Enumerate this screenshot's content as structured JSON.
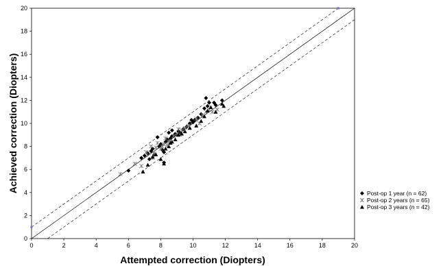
{
  "chart_data": {
    "type": "scatter",
    "xlabel": "Attempted correction (Diopters)",
    "ylabel": "Achieved correction (Diopters)",
    "xlim": [
      0,
      20
    ],
    "ylim": [
      0,
      20
    ],
    "xticks": [
      "0",
      "2",
      "4",
      "6",
      "8",
      "10",
      "12",
      "14",
      "16",
      "18",
      "20"
    ],
    "yticks": [
      "0",
      "2",
      "4",
      "6",
      "8",
      "10",
      "12",
      "14",
      "16",
      "18",
      "20"
    ],
    "grid": false,
    "legend_position": "right",
    "reference_lines": [
      {
        "type": "identity",
        "style": "solid",
        "points": [
          [
            0,
            0
          ],
          [
            20,
            20
          ]
        ]
      },
      {
        "type": "upper-bound",
        "style": "dashed",
        "points": [
          [
            0,
            1
          ],
          [
            19,
            20
          ]
        ]
      },
      {
        "type": "lower-bound",
        "style": "dashed",
        "points": [
          [
            1,
            0
          ],
          [
            20,
            19
          ]
        ]
      }
    ],
    "anchor_points": [
      [
        0,
        1
      ],
      [
        19,
        20
      ]
    ],
    "series": [
      {
        "name": "Post-op 1 year (n = 62)",
        "marker": "diamond",
        "points": [
          [
            6.0,
            5.9
          ],
          [
            6.8,
            7.0
          ],
          [
            7.0,
            7.2
          ],
          [
            7.2,
            7.4
          ],
          [
            7.3,
            6.9
          ],
          [
            7.5,
            7.8
          ],
          [
            7.6,
            7.3
          ],
          [
            7.8,
            8.8
          ],
          [
            7.9,
            8.0
          ],
          [
            8.0,
            8.2
          ],
          [
            8.1,
            7.7
          ],
          [
            8.2,
            6.6
          ],
          [
            8.3,
            8.4
          ],
          [
            8.4,
            8.6
          ],
          [
            8.5,
            9.2
          ],
          [
            8.6,
            8.7
          ],
          [
            8.7,
            9.4
          ],
          [
            8.8,
            8.9
          ],
          [
            8.9,
            9.1
          ],
          [
            9.0,
            9.0
          ],
          [
            9.1,
            9.3
          ],
          [
            9.2,
            9.2
          ],
          [
            9.4,
            9.5
          ],
          [
            9.6,
            9.7
          ],
          [
            9.8,
            10.0
          ],
          [
            9.9,
            10.3
          ],
          [
            10.0,
            10.1
          ],
          [
            10.1,
            10.3
          ],
          [
            10.5,
            10.8
          ],
          [
            10.7,
            11.3
          ],
          [
            10.8,
            12.2
          ],
          [
            10.9,
            11.5
          ],
          [
            11.0,
            11.8
          ],
          [
            11.3,
            11.8
          ],
          [
            11.4,
            11.6
          ],
          [
            11.8,
            12.0
          ],
          [
            8.2,
            7.5
          ],
          [
            7.4,
            7.6
          ],
          [
            8.7,
            8.9
          ],
          [
            10.3,
            10.5
          ]
        ]
      },
      {
        "name": "Post-op 2 years (n = 65)",
        "marker": "asterisk",
        "points": [
          [
            5.5,
            5.6
          ],
          [
            6.4,
            6.5
          ],
          [
            6.8,
            6.3
          ],
          [
            7.1,
            7.5
          ],
          [
            7.4,
            8.0
          ],
          [
            7.6,
            7.4
          ],
          [
            7.7,
            7.9
          ],
          [
            7.8,
            8.3
          ],
          [
            8.0,
            7.8
          ],
          [
            8.1,
            8.0
          ],
          [
            8.2,
            8.2
          ],
          [
            8.4,
            8.1
          ],
          [
            8.5,
            8.4
          ],
          [
            8.6,
            8.5
          ],
          [
            8.8,
            8.9
          ],
          [
            9.0,
            9.1
          ],
          [
            9.2,
            9.0
          ],
          [
            9.3,
            9.4
          ],
          [
            9.5,
            9.6
          ],
          [
            9.7,
            9.8
          ],
          [
            10.2,
            10.4
          ],
          [
            10.4,
            10.0
          ],
          [
            10.6,
            10.7
          ],
          [
            10.8,
            11.0
          ],
          [
            11.0,
            11.2
          ],
          [
            11.2,
            11.0
          ],
          [
            11.5,
            11.2
          ],
          [
            8.3,
            8.7
          ],
          [
            7.5,
            7.0
          ],
          [
            9.1,
            9.5
          ]
        ]
      },
      {
        "name": "Post-op 3 years (n = 42)",
        "marker": "triangle",
        "points": [
          [
            6.9,
            5.8
          ],
          [
            7.2,
            6.4
          ],
          [
            7.5,
            7.1
          ],
          [
            7.7,
            7.3
          ],
          [
            8.0,
            6.9
          ],
          [
            8.2,
            6.5
          ],
          [
            8.3,
            7.8
          ],
          [
            8.5,
            8.0
          ],
          [
            8.7,
            8.4
          ],
          [
            8.9,
            8.6
          ],
          [
            9.1,
            9.0
          ],
          [
            9.5,
            9.3
          ],
          [
            9.8,
            9.6
          ],
          [
            10.2,
            9.8
          ],
          [
            10.5,
            10.2
          ],
          [
            10.7,
            10.6
          ],
          [
            10.9,
            11.1
          ],
          [
            11.1,
            11.4
          ],
          [
            11.4,
            11.0
          ],
          [
            11.9,
            11.5
          ],
          [
            11.8,
            11.7
          ],
          [
            8.6,
            8.3
          ],
          [
            9.3,
            9.1
          ]
        ]
      }
    ]
  }
}
